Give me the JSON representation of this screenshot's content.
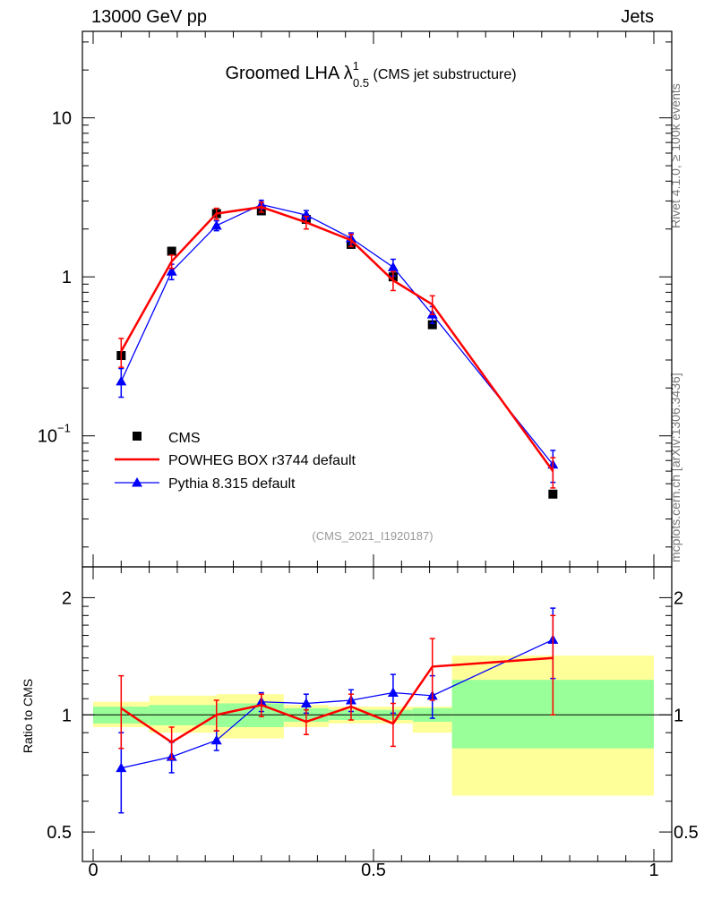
{
  "header": {
    "left": "13000 GeV pp",
    "right": "Jets"
  },
  "side_labels": {
    "top": "Rivet 4.1.0, ≥ 100k events",
    "bottom": "mcplots.cern.ch [arXiv:1306.3436]"
  },
  "chart_data": {
    "type": "scatter",
    "title": "Groomed LHA",
    "title_symbol": "λ",
    "title_sup": "1",
    "title_sub": "0.5",
    "subtitle": "(CMS jet substructure)",
    "analysis_tag": "(CMS_2021_I1920187)",
    "xlim": [
      0,
      1
    ],
    "x_ticks": [
      {
        "value": 0,
        "label": "0"
      },
      {
        "value": 0.5,
        "label": "0.5"
      },
      {
        "value": 1,
        "label": "1"
      }
    ],
    "main": {
      "yscale": "log",
      "ylim": [
        0.015,
        35
      ],
      "y_ticks": [
        {
          "value": 0.1,
          "label": "10",
          "sup": "−1"
        },
        {
          "value": 1,
          "label": "1",
          "sup": ""
        },
        {
          "value": 10,
          "label": "10",
          "sup": ""
        }
      ],
      "series": [
        {
          "name": "CMS",
          "style": "square",
          "color": "#000000",
          "x": [
            0.05,
            0.14,
            0.22,
            0.3,
            0.38,
            0.46,
            0.535,
            0.605,
            0.82
          ],
          "y": [
            0.32,
            1.45,
            2.5,
            2.6,
            2.3,
            1.6,
            1.0,
            0.5,
            0.043
          ]
        },
        {
          "name": "POWHEG BOX r3744 default",
          "style": "line",
          "color": "#ff0000",
          "x": [
            0.05,
            0.14,
            0.22,
            0.3,
            0.38,
            0.46,
            0.535,
            0.605,
            0.82
          ],
          "y": [
            0.34,
            1.25,
            2.5,
            2.75,
            2.2,
            1.7,
            0.95,
            0.67,
            0.06
          ],
          "err": [
            0.07,
            0.12,
            0.2,
            0.2,
            0.2,
            0.15,
            0.13,
            0.09,
            0.013
          ]
        },
        {
          "name": "Pythia 8.315 default",
          "style": "triangle",
          "color": "#0000ff",
          "x": [
            0.05,
            0.14,
            0.22,
            0.3,
            0.38,
            0.46,
            0.535,
            0.605,
            0.82
          ],
          "y": [
            0.22,
            1.08,
            2.1,
            2.85,
            2.45,
            1.75,
            1.15,
            0.58,
            0.066
          ],
          "err": [
            0.045,
            0.12,
            0.15,
            0.18,
            0.16,
            0.14,
            0.14,
            0.07,
            0.015
          ]
        }
      ]
    },
    "ratio": {
      "ylabel": "Ratio to CMS",
      "yscale": "log",
      "ylim": [
        0.42,
        2.4
      ],
      "y_ticks": [
        {
          "value": 0.5,
          "label": "0.5"
        },
        {
          "value": 1,
          "label": "1"
        },
        {
          "value": 2,
          "label": "2"
        }
      ],
      "bands": [
        {
          "x0": 0.0,
          "x1": 0.1,
          "inner": [
            0.95,
            1.05
          ],
          "outer": [
            0.93,
            1.08
          ]
        },
        {
          "x0": 0.1,
          "x1": 0.22,
          "inner": [
            0.94,
            1.06
          ],
          "outer": [
            0.9,
            1.12
          ]
        },
        {
          "x0": 0.22,
          "x1": 0.34,
          "inner": [
            0.93,
            1.07
          ],
          "outer": [
            0.87,
            1.13
          ]
        },
        {
          "x0": 0.34,
          "x1": 0.42,
          "inner": [
            0.96,
            1.04
          ],
          "outer": [
            0.93,
            1.06
          ]
        },
        {
          "x0": 0.42,
          "x1": 0.57,
          "inner": [
            0.97,
            1.03
          ],
          "outer": [
            0.95,
            1.05
          ]
        },
        {
          "x0": 0.57,
          "x1": 0.64,
          "inner": [
            0.96,
            1.04
          ],
          "outer": [
            0.9,
            1.05
          ]
        },
        {
          "x0": 0.64,
          "x1": 1.0,
          "inner": [
            0.82,
            1.23
          ],
          "outer": [
            0.62,
            1.42
          ]
        }
      ],
      "series": [
        {
          "name": "POWHEG BOX r3744 default",
          "color": "#ff0000",
          "x": [
            0.05,
            0.14,
            0.22,
            0.3,
            0.38,
            0.46,
            0.535,
            0.605,
            0.82
          ],
          "y": [
            1.04,
            0.85,
            1.0,
            1.06,
            0.96,
            1.05,
            0.95,
            1.33,
            1.4
          ],
          "err": [
            0.22,
            0.08,
            0.09,
            0.07,
            0.07,
            0.08,
            0.12,
            0.24,
            0.4
          ]
        },
        {
          "name": "Pythia 8.315 default",
          "color": "#0000ff",
          "x": [
            0.05,
            0.14,
            0.22,
            0.3,
            0.38,
            0.46,
            0.535,
            0.605,
            0.82
          ],
          "y": [
            0.73,
            0.78,
            0.86,
            1.08,
            1.07,
            1.09,
            1.14,
            1.12,
            1.56
          ],
          "err": [
            0.17,
            0.07,
            0.05,
            0.06,
            0.06,
            0.07,
            0.13,
            0.14,
            0.32
          ]
        }
      ]
    }
  }
}
